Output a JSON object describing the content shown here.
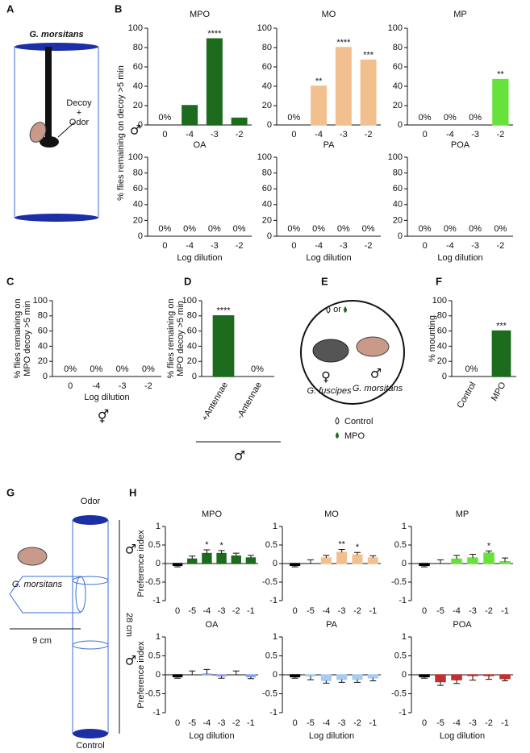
{
  "panel_labels": [
    "A",
    "B",
    "C",
    "D",
    "E",
    "F",
    "G",
    "H"
  ],
  "diagram_A": {
    "species": "G. morsitans",
    "decoy": "Decoy",
    "plus": "+",
    "odor": "Odor"
  },
  "diagram_E": {
    "or": "or",
    "female_symbol": "♀",
    "male_symbol": "♂",
    "species_left": "G. fuscipes",
    "species_right": "G. morsitans",
    "legend": [
      "Control",
      "MPO"
    ]
  },
  "diagram_G": {
    "top": "Odor",
    "bottom": "Control",
    "species": "G. morsitans",
    "height": "28 cm",
    "width": "9 cm"
  },
  "chart_data": [
    {
      "type": "bar",
      "title": "MPO",
      "categories": [
        "0",
        "-4",
        "-3",
        "-2"
      ],
      "values": [
        0,
        20,
        89,
        7
      ],
      "colors": [
        "#000000",
        "#1d6b1d",
        "#1d6b1d",
        "#1d6b1d"
      ],
      "value_labels": [
        "0%",
        null,
        null,
        null
      ],
      "annotations": [
        null,
        null,
        "****",
        null
      ],
      "ylim": [
        0,
        100
      ],
      "yticks": [
        0,
        20,
        40,
        60,
        80,
        100
      ],
      "y_label": "% flies remaining on decoy >5 min",
      "sex_symbol": "♂"
    },
    {
      "type": "bar",
      "title": "MO",
      "categories": [
        "0",
        "-4",
        "-3",
        "-2"
      ],
      "values": [
        0,
        40,
        80,
        67
      ],
      "colors": [
        "#000000",
        "#f2c08e",
        "#f2c08e",
        "#f2c08e"
      ],
      "value_labels": [
        "0%",
        null,
        null,
        null
      ],
      "annotations": [
        null,
        "**",
        "****",
        "***"
      ],
      "ylim": [
        0,
        100
      ],
      "yticks": [
        0,
        20,
        40,
        60,
        80,
        100
      ]
    },
    {
      "type": "bar",
      "title": "MP",
      "categories": [
        "0",
        "-4",
        "-3",
        "-2"
      ],
      "values": [
        0,
        0,
        0,
        47
      ],
      "colors": [
        "#000000",
        "#66e23a",
        "#66e23a",
        "#66e23a"
      ],
      "value_labels": [
        "0%",
        "0%",
        "0%",
        null
      ],
      "annotations": [
        null,
        null,
        null,
        "**"
      ],
      "ylim": [
        0,
        100
      ],
      "yticks": [
        0,
        20,
        40,
        60,
        80,
        100
      ]
    },
    {
      "type": "bar",
      "title": "OA",
      "categories": [
        "0",
        "-4",
        "-3",
        "-2"
      ],
      "values": [
        0,
        0,
        0,
        0
      ],
      "colors": [
        "#000000",
        "#8ea4ea",
        "#8ea4ea",
        "#8ea4ea"
      ],
      "value_labels": [
        "0%",
        "0%",
        "0%",
        "0%"
      ],
      "ylim": [
        0,
        100
      ],
      "yticks": [
        0,
        20,
        40,
        60,
        80,
        100
      ],
      "x_label": "Log dilution"
    },
    {
      "type": "bar",
      "title": "PA",
      "categories": [
        "0",
        "-4",
        "-3",
        "-2"
      ],
      "values": [
        0,
        0,
        0,
        0
      ],
      "colors": [
        "#000000",
        "#a9cbef",
        "#a9cbef",
        "#a9cbef"
      ],
      "value_labels": [
        "0%",
        "0%",
        "0%",
        "0%"
      ],
      "ylim": [
        0,
        100
      ],
      "yticks": [
        0,
        20,
        40,
        60,
        80,
        100
      ],
      "x_label": "Log dilution"
    },
    {
      "type": "bar",
      "title": "POA",
      "categories": [
        "0",
        "-4",
        "-3",
        "-2"
      ],
      "values": [
        0,
        0,
        0,
        0
      ],
      "colors": [
        "#000000",
        "#c0312f",
        "#c0312f",
        "#c0312f"
      ],
      "value_labels": [
        "0%",
        "0%",
        "0%",
        "0%"
      ],
      "ylim": [
        0,
        100
      ],
      "yticks": [
        0,
        20,
        40,
        60,
        80,
        100
      ],
      "x_label": "Log dilution"
    },
    {
      "type": "bar",
      "categories": [
        "0",
        "-4",
        "-3",
        "-2"
      ],
      "values": [
        0,
        0,
        0,
        0
      ],
      "colors": [
        "#000000",
        "#1d6b1d",
        "#1d6b1d",
        "#1d6b1d"
      ],
      "value_labels": [
        "0%",
        "0%",
        "0%",
        "0%"
      ],
      "ylim": [
        0,
        100
      ],
      "yticks": [
        0,
        20,
        40,
        60,
        80,
        100
      ],
      "x_label": "Log dilution",
      "y_label": [
        "% flies remaining on",
        "MPO decoy >5 min"
      ],
      "sex_symbol": "⚥"
    },
    {
      "type": "bar",
      "categories": [
        "+Antennae",
        "-Antennae"
      ],
      "values": [
        80,
        0
      ],
      "colors": [
        "#1d6b1d",
        "#000000"
      ],
      "value_labels": [
        null,
        "0%"
      ],
      "annotations": [
        "****",
        null
      ],
      "ylim": [
        0,
        100
      ],
      "yticks": [
        0,
        20,
        40,
        60,
        80,
        100
      ],
      "y_label": [
        "% flies remaining on",
        "MPO decoy >5 min"
      ],
      "sex_symbol": "♂"
    },
    {
      "type": "bar",
      "categories": [
        "Control",
        "MPO"
      ],
      "values": [
        0,
        60
      ],
      "colors": [
        "#000000",
        "#1d6b1d"
      ],
      "value_labels": [
        "0%",
        null
      ],
      "annotations": [
        null,
        "***"
      ],
      "ylim": [
        0,
        100
      ],
      "yticks": [
        0,
        20,
        40,
        60,
        80,
        100
      ],
      "y_label": "% mounting"
    },
    {
      "type": "bar",
      "title": "MPO",
      "categories": [
        "0",
        "-5",
        "-4",
        "-3",
        "-2",
        "-1"
      ],
      "values": [
        -0.05,
        0.12,
        0.27,
        0.27,
        0.2,
        0.15
      ],
      "errors": [
        0.04,
        0.08,
        0.1,
        0.08,
        0.08,
        0.07
      ],
      "colors": [
        "#000000",
        "#1d6b1d",
        "#1d6b1d",
        "#1d6b1d",
        "#1d6b1d",
        "#1d6b1d"
      ],
      "annotations": [
        null,
        null,
        "*",
        "*",
        null,
        null
      ],
      "ylim": [
        -1,
        1
      ],
      "yticks": [
        -1,
        -0.5,
        0,
        0.5,
        1
      ],
      "y_label": "Preference index",
      "sex_symbol": "♂"
    },
    {
      "type": "bar",
      "title": "MO",
      "categories": [
        "0",
        "-5",
        "-4",
        "-3",
        "-2",
        "-1"
      ],
      "values": [
        -0.05,
        0.0,
        0.15,
        0.3,
        0.23,
        0.15
      ],
      "errors": [
        0.04,
        0.1,
        0.07,
        0.08,
        0.07,
        0.06
      ],
      "colors": [
        "#000000",
        "#f2c08e",
        "#f2c08e",
        "#f2c08e",
        "#f2c08e",
        "#f2c08e"
      ],
      "annotations": [
        null,
        null,
        null,
        "**",
        "*",
        null
      ],
      "ylim": [
        -1,
        1
      ],
      "yticks": [
        -1,
        -0.5,
        0,
        0.5,
        1
      ]
    },
    {
      "type": "bar",
      "title": "MP",
      "categories": [
        "0",
        "-5",
        "-4",
        "-3",
        "-2",
        "-1"
      ],
      "values": [
        -0.05,
        0.0,
        0.12,
        0.15,
        0.28,
        0.05
      ],
      "errors": [
        0.04,
        0.1,
        0.1,
        0.1,
        0.06,
        0.1
      ],
      "colors": [
        "#000000",
        "#66e23a",
        "#66e23a",
        "#66e23a",
        "#66e23a",
        "#66e23a"
      ],
      "annotations": [
        null,
        null,
        null,
        null,
        "*",
        null
      ],
      "ylim": [
        -1,
        1
      ],
      "yticks": [
        -1,
        -0.5,
        0,
        0.5,
        1
      ]
    },
    {
      "type": "bar",
      "title": "OA",
      "categories": [
        "0",
        "-5",
        "-4",
        "-3",
        "-2",
        "-1"
      ],
      "values": [
        -0.05,
        0.0,
        0.02,
        -0.03,
        0.0,
        -0.05
      ],
      "errors": [
        0.04,
        0.1,
        0.12,
        0.06,
        0.1,
        0.05
      ],
      "colors": [
        "#000000",
        "#8ea4ea",
        "#8ea4ea",
        "#8ea4ea",
        "#8ea4ea",
        "#8ea4ea"
      ],
      "ylim": [
        -1,
        1
      ],
      "yticks": [
        -1,
        -0.5,
        0,
        0.5,
        1
      ],
      "x_label": "Log dilution",
      "y_label": "Preference index",
      "sex_symbol": "♂"
    },
    {
      "type": "bar",
      "title": "PA",
      "categories": [
        "0",
        "-5",
        "-4",
        "-3",
        "-2",
        "-1"
      ],
      "values": [
        -0.05,
        -0.03,
        -0.15,
        -0.12,
        -0.12,
        -0.08
      ],
      "errors": [
        0.04,
        0.1,
        0.07,
        0.08,
        0.08,
        0.08
      ],
      "colors": [
        "#000000",
        "#a9cbef",
        "#a9cbef",
        "#a9cbef",
        "#a9cbef",
        "#a9cbef"
      ],
      "ylim": [
        -1,
        1
      ],
      "yticks": [
        -1,
        -0.5,
        0,
        0.5,
        1
      ],
      "x_label": "Log dilution"
    },
    {
      "type": "bar",
      "title": "POA",
      "categories": [
        "0",
        "-5",
        "-4",
        "-3",
        "-2",
        "-1"
      ],
      "values": [
        -0.05,
        -0.18,
        -0.13,
        -0.02,
        -0.02,
        -0.1
      ],
      "errors": [
        0.04,
        0.1,
        0.1,
        0.12,
        0.1,
        0.06
      ],
      "colors": [
        "#000000",
        "#c0312f",
        "#c0312f",
        "#c0312f",
        "#c0312f",
        "#c0312f"
      ],
      "ylim": [
        -1,
        1
      ],
      "yticks": [
        -1,
        -0.5,
        0,
        0.5,
        1
      ],
      "x_label": "Log dilution"
    }
  ]
}
